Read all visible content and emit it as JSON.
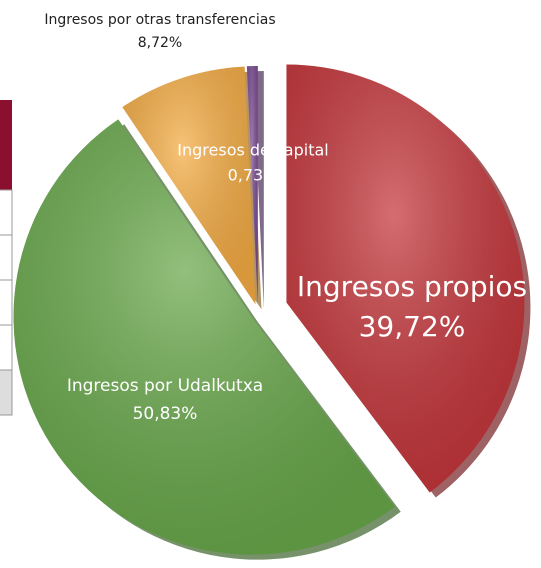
{
  "chart_data": {
    "type": "pie",
    "categories": [
      "Ingresos propios",
      "Ingresos por Udalkutxa",
      "Ingresos por otras transferencias",
      "Ingresos de capital"
    ],
    "values": [
      39.72,
      50.83,
      8.72,
      0.73
    ],
    "value_labels": [
      "39,72%",
      "50,83%",
      "8,72%",
      "0,73%"
    ],
    "colors": [
      "#c4353a",
      "#68a84a",
      "#f5ac43",
      "#7a4a92"
    ]
  }
}
